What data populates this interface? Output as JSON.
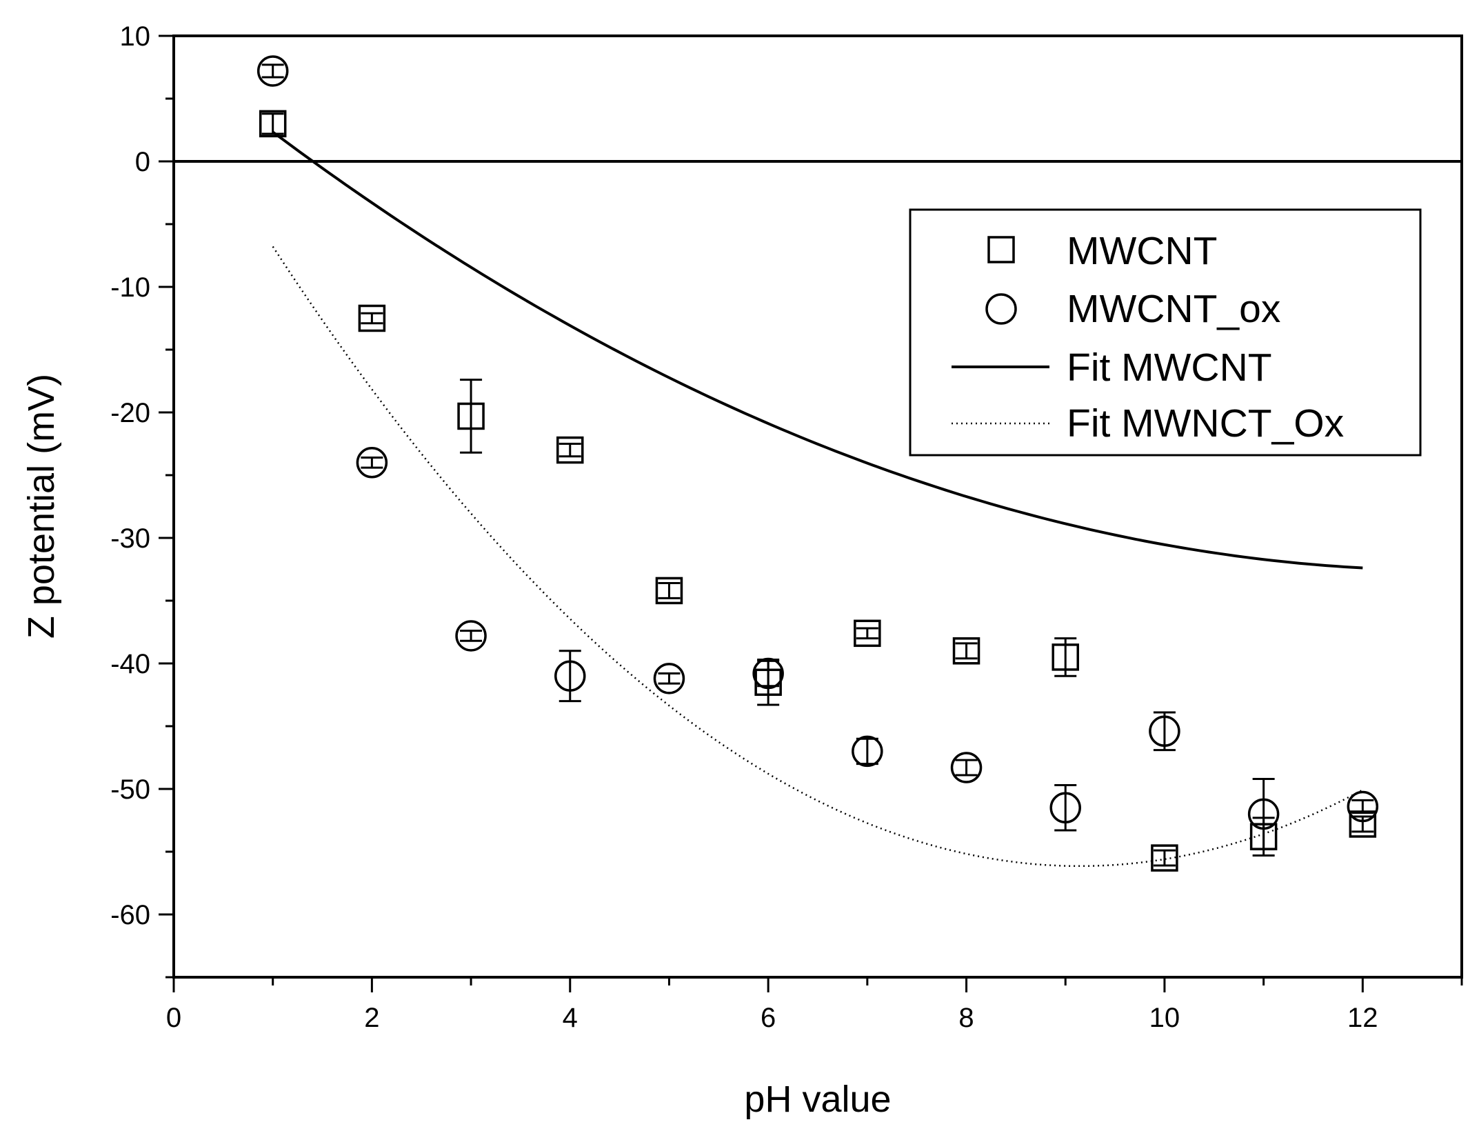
{
  "chart_data": {
    "type": "scatter",
    "title": "",
    "xlabel": "pH value",
    "ylabel": "Z potential (mV)",
    "xlim": [
      0,
      13
    ],
    "ylim": [
      -65,
      10
    ],
    "xticks": [
      0,
      2,
      4,
      6,
      8,
      10,
      12
    ],
    "yticks": [
      10,
      0,
      -10,
      -20,
      -30,
      -40,
      -50,
      -60
    ],
    "zero_line": 0,
    "legend_position": "top-right",
    "series": [
      {
        "name": "MWCNT",
        "marker": "square",
        "points": [
          {
            "x": 1,
            "y": 3.0,
            "err": 0.8
          },
          {
            "x": 2,
            "y": -12.5,
            "err": 0.4
          },
          {
            "x": 3,
            "y": -20.3,
            "err": 2.9
          },
          {
            "x": 4,
            "y": -23.0,
            "err": 0.5
          },
          {
            "x": 5,
            "y": -34.2,
            "err": 0.6
          },
          {
            "x": 6,
            "y": -41.5,
            "err": 1.8
          },
          {
            "x": 7,
            "y": -37.6,
            "err": 0.4
          },
          {
            "x": 8,
            "y": -39.0,
            "err": 0.6
          },
          {
            "x": 9,
            "y": -39.5,
            "err": 1.5
          },
          {
            "x": 10,
            "y": -55.5,
            "err": 0.6
          },
          {
            "x": 11,
            "y": -53.8,
            "err": 1.5
          },
          {
            "x": 12,
            "y": -52.8,
            "err": 0.6
          }
        ]
      },
      {
        "name": "MWCNT_ox",
        "marker": "circle",
        "points": [
          {
            "x": 1,
            "y": 7.2,
            "err": 0.5
          },
          {
            "x": 2,
            "y": -24.0,
            "err": 0.4
          },
          {
            "x": 3,
            "y": -37.8,
            "err": 0.4
          },
          {
            "x": 4,
            "y": -41.0,
            "err": 2.0
          },
          {
            "x": 5,
            "y": -41.2,
            "err": 0.4
          },
          {
            "x": 6,
            "y": -40.8,
            "err": 1.0
          },
          {
            "x": 7,
            "y": -47.0,
            "err": 1.0
          },
          {
            "x": 8,
            "y": -48.3,
            "err": 0.6
          },
          {
            "x": 9,
            "y": -51.5,
            "err": 1.8
          },
          {
            "x": 10,
            "y": -45.4,
            "err": 1.5
          },
          {
            "x": 11,
            "y": -52.0,
            "err": 2.8
          },
          {
            "x": 12,
            "y": -51.4,
            "err": 0.5
          }
        ]
      },
      {
        "name": "Fit MWCNT",
        "style": "solid",
        "fit": "quadratic",
        "coefficients": [
          8.47,
          -6.38,
          0.2479
        ],
        "x_range": [
          1,
          12
        ]
      },
      {
        "name": "Fit MWNCT_Ox",
        "style": "dotted",
        "fit": "quadratic",
        "coefficients": [
          6.08,
          -13.61,
          0.7442
        ],
        "x_range": [
          1,
          12
        ]
      }
    ]
  }
}
